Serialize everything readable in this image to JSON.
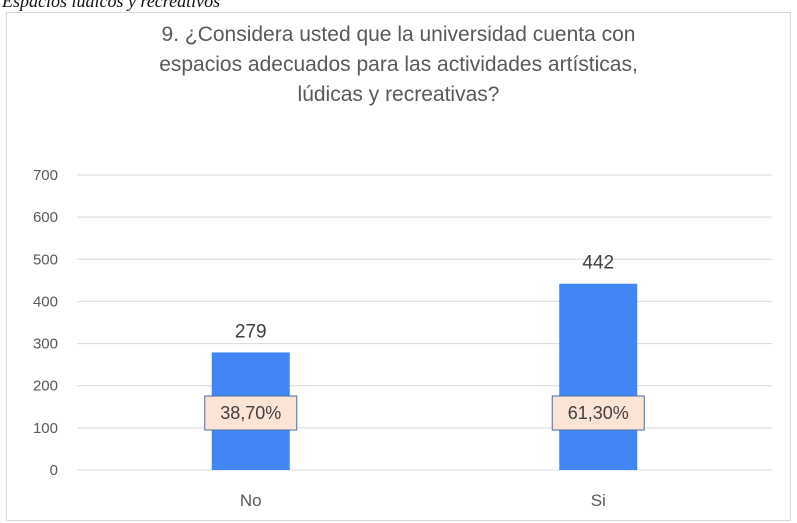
{
  "caption": "Espacios lúdicos y recreativos",
  "colors": {
    "bar": "#4285f4",
    "grid": "#d9d9d9",
    "text": "#595959",
    "pct_label_bg": "#fbe3d5",
    "pct_label_border": "#4a6fa5"
  },
  "chart_data": {
    "type": "bar",
    "title_lines": [
      "9. ¿Considera usted que la universidad cuenta con",
      "espacios adecuados para las actividades artísticas,",
      "lúdicas y recreativas?"
    ],
    "categories": [
      "No",
      "Si"
    ],
    "values": [
      279,
      442
    ],
    "value_labels": [
      "279",
      "442"
    ],
    "percent_labels": [
      "38,70%",
      "61,30%"
    ],
    "ylim": [
      0,
      700
    ],
    "yticks": [
      0,
      100,
      200,
      300,
      400,
      500,
      600,
      700
    ],
    "grid": true,
    "legend": "none"
  }
}
